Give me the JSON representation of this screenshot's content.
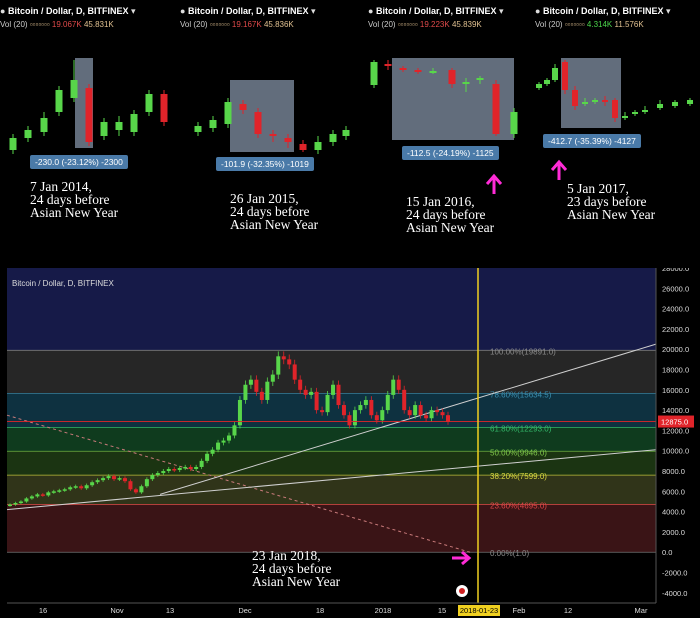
{
  "colors": {
    "up": "#58d64a",
    "down": "#e0242a",
    "box": "#8391a6",
    "arrow": "#ff2bd6",
    "badge": "#4a7aa8"
  },
  "panels": [
    {
      "title": "Bitcoin / Dollar, D, BITFINEX",
      "vol_label": "Vol (20)",
      "vol_a": "19.067K",
      "vol_b": "45.831K",
      "vol_a_color": "red",
      "badge": "-230.0 (-23.12%) -2300",
      "caption": "7 Jan 2014,\n24 days before\nAsian New Year",
      "arrow": false
    },
    {
      "title": "Bitcoin / Dollar, D, BITFINEX",
      "vol_label": "Vol (20)",
      "vol_a": "19.167K",
      "vol_b": "45.836K",
      "vol_a_color": "red",
      "badge": "-101.9 (-32.35%) -1019",
      "caption": "26 Jan 2015,\n24 days before\nAsian New Year",
      "arrow": false
    },
    {
      "title": "Bitcoin / Dollar, D, BITFINEX",
      "vol_label": "Vol (20)",
      "vol_a": "19.223K",
      "vol_b": "45.839K",
      "vol_a_color": "red",
      "badge": "-112.5 (-24.19%) -1125",
      "caption": "15 Jan 2016,\n24 days before\nAsian New Year",
      "arrow": true
    },
    {
      "title": "Bitcoin / Dollar, D, BITFINEX",
      "vol_label": "Vol (20)",
      "vol_a": "4.314K",
      "vol_b": "11.576K",
      "vol_a_color": "green",
      "badge": "-412.7 (-35.39%) -4127",
      "caption": "5 Jan 2017,\n23 days before\nAsian New Year",
      "arrow": true
    }
  ],
  "chart_data": {
    "type": "candlestick",
    "title": "Bitcoin / Dollar, D, BITFINEX",
    "ylim": [
      -5000,
      28000
    ],
    "y_ticks": [
      28000,
      26000,
      24000,
      22000,
      20000,
      18000,
      16000,
      14000,
      12000,
      10000,
      8000,
      6000,
      4000,
      2000,
      0,
      -2000,
      -4000
    ],
    "y_tick_labels": [
      "28000.0",
      "26000.0",
      "24000.0",
      "22000.0",
      "20000.0",
      "18000.0",
      "16000.0",
      "14000.0",
      "12000.0",
      "10000.0",
      "8000.0",
      "6000.0",
      "4000.0",
      "2000.0",
      "0.0",
      "-2000.0",
      "-4000.0"
    ],
    "x_tick_labels": [
      "16",
      "Nov",
      "13",
      "Dec",
      "18",
      "2018",
      "15",
      "Feb",
      "12",
      "Mar"
    ],
    "current_price": "12875.0",
    "marker_date": "2018-01-23",
    "fib_levels": [
      {
        "label": "100.00%(19891.0)",
        "value": 19891
      },
      {
        "label": "78.60%(15634.5)",
        "value": 15634.5
      },
      {
        "label": "61.80%(12293.0)",
        "value": 12293
      },
      {
        "label": "50.00%(9946.0)",
        "value": 9946
      },
      {
        "label": "38.20%(7599.0)",
        "value": 7599
      },
      {
        "label": "23.60%(4695.0)",
        "value": 4695
      },
      {
        "label": "0.00%(1.0)",
        "value": 1
      }
    ],
    "closes": [
      4700,
      4850,
      5000,
      5300,
      5500,
      5700,
      5600,
      5900,
      6000,
      6100,
      6200,
      6400,
      6500,
      6300,
      6600,
      6900,
      7100,
      7300,
      7500,
      7200,
      7300,
      7000,
      6200,
      5900,
      6500,
      7200,
      7600,
      7800,
      8000,
      8200,
      8100,
      8300,
      8400,
      8200,
      8400,
      9000,
      9700,
      10100,
      10800,
      11000,
      11500,
      12500,
      15000,
      16500,
      17000,
      15800,
      15000,
      16800,
      17500,
      19300,
      19000,
      18500,
      17000,
      16000,
      15500,
      15800,
      14000,
      13800,
      15500,
      16500,
      14500,
      13500,
      12500,
      14000,
      14500,
      15000,
      13500,
      13000,
      14000,
      15500,
      17000,
      16000,
      14000,
      13500,
      14500,
      13500,
      13200,
      14000,
      13800,
      13500,
      12875
    ],
    "annotation": "23 Jan 2018,\n24 days before\nAsian New Year"
  }
}
